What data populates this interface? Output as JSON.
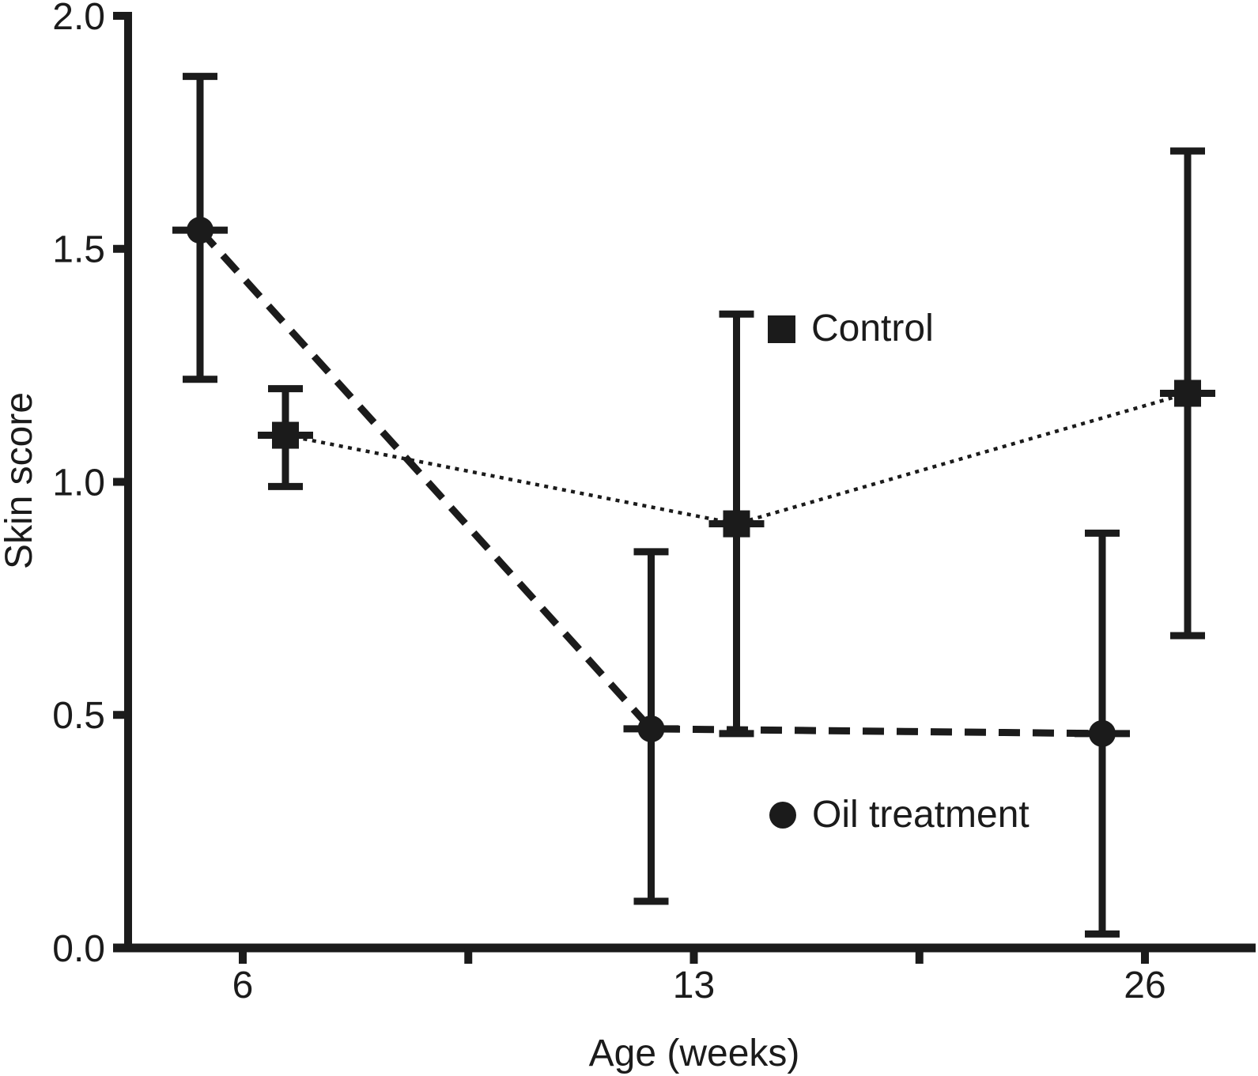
{
  "figure": {
    "background": "#ffffff",
    "ink_color": "#1b1b1b"
  },
  "chart_data": {
    "type": "line",
    "title": "",
    "xlabel": "Age (weeks)",
    "ylabel": "Skin score",
    "x_categories": [
      "6",
      "13",
      "26"
    ],
    "x_values_weeks": [
      6,
      13,
      26
    ],
    "ylim": [
      0.0,
      2.0
    ],
    "y_ticks": [
      "0.0",
      "0.5",
      "1.0",
      "1.5",
      "2.0"
    ],
    "y_tick_values": [
      0.0,
      0.5,
      1.0,
      1.5,
      2.0
    ],
    "grid": false,
    "x_minor_ticks": "midpoints-between-labeled-ticks",
    "error_bars": true,
    "legend_position": "inside-right-of-points",
    "series": [
      {
        "name": "Control",
        "marker": "square",
        "line_style": "dotted",
        "values": [
          1.1,
          0.91,
          1.19
        ],
        "error_low": [
          0.99,
          0.46,
          0.67
        ],
        "error_high": [
          1.2,
          1.36,
          1.71
        ]
      },
      {
        "name": "Oil treatment",
        "marker": "circle",
        "line_style": "dashed",
        "values": [
          1.54,
          0.47,
          0.46
        ],
        "error_low": [
          1.22,
          0.1,
          0.03
        ],
        "error_high": [
          1.87,
          0.85,
          0.89
        ]
      }
    ]
  }
}
